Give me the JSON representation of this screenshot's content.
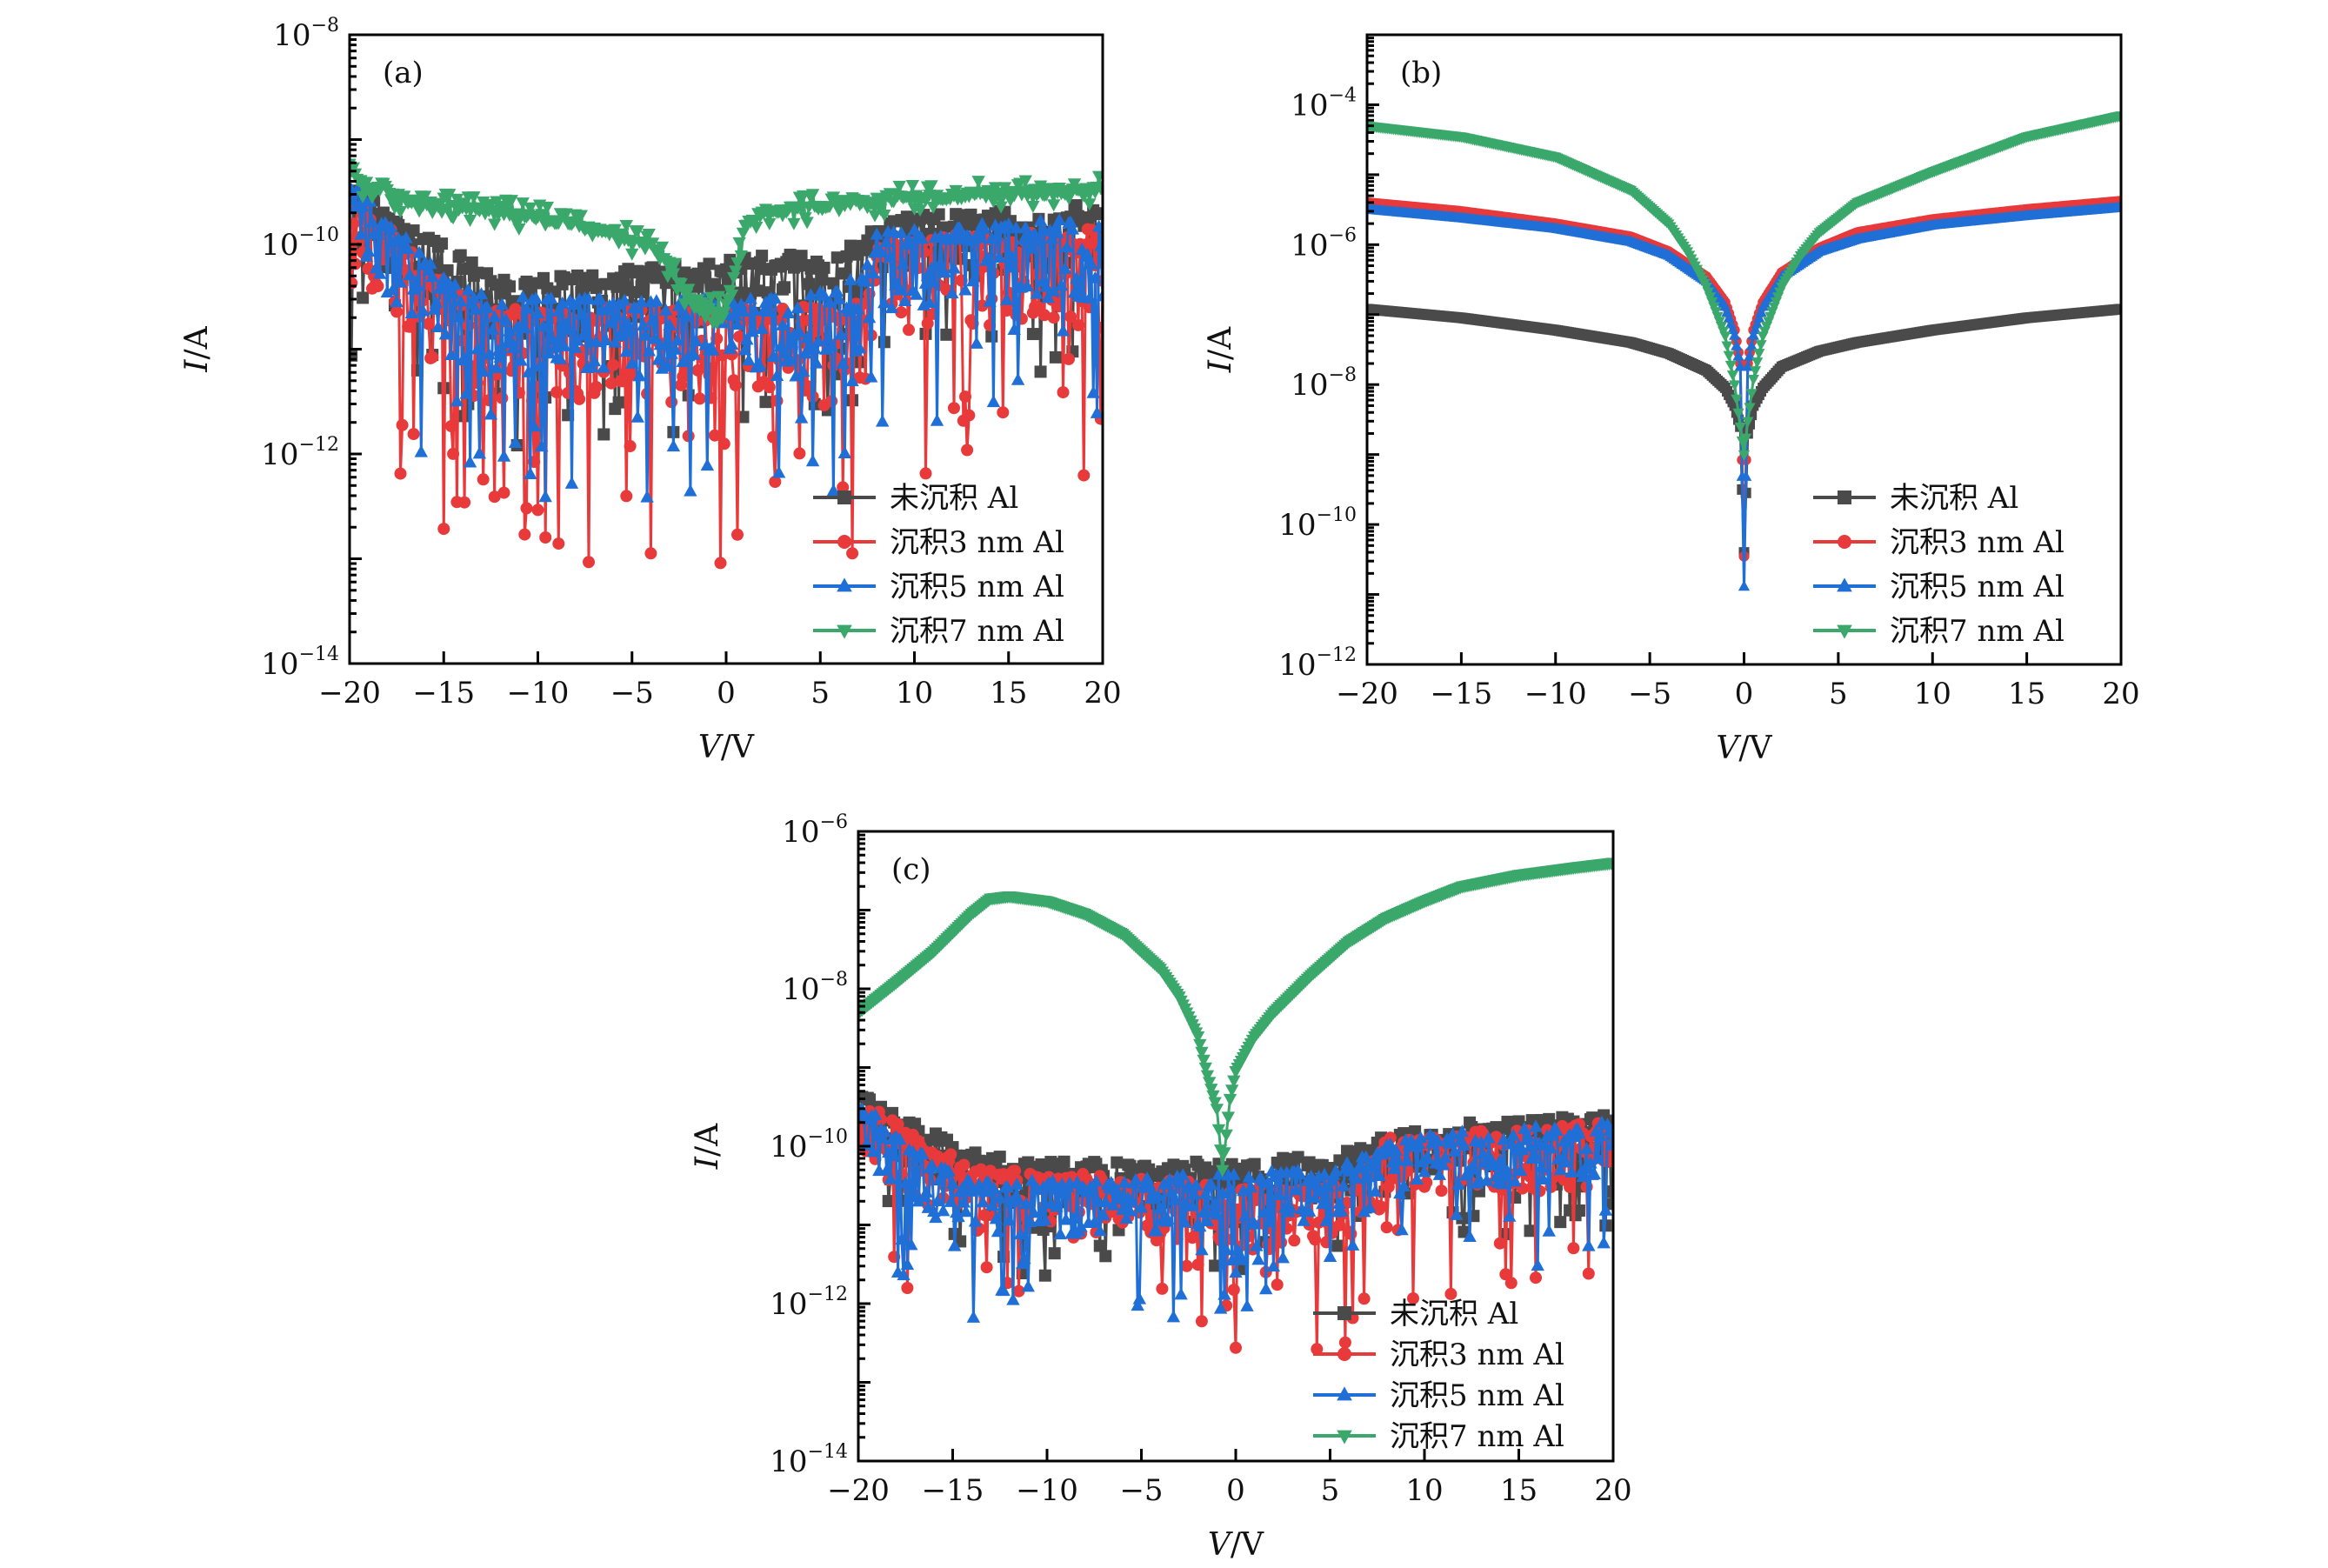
{
  "chart_data": [
    {
      "type": "scatter",
      "panel_label": "(a)",
      "title": "",
      "xlabel": "V/V",
      "ylabel": "I/A",
      "xlim": [
        -20,
        20
      ],
      "ylim": [
        1e-14,
        1e-08
      ],
      "yscale": "log",
      "x_ticks": [
        -20,
        -15,
        -10,
        -5,
        0,
        5,
        10,
        15,
        20
      ],
      "x_tick_labels": [
        "−20",
        "−15",
        "−10",
        "−5",
        "0",
        "5",
        "10",
        "15",
        "20"
      ],
      "y_ticks": [
        1e-14,
        1e-12,
        1e-10,
        1e-08
      ],
      "y_tick_labels": [
        {
          "base": "10",
          "exp": "−14"
        },
        {
          "base": "10",
          "exp": "−12"
        },
        {
          "base": "10",
          "exp": "−10"
        },
        {
          "base": "10",
          "exp": "−8"
        }
      ],
      "legend_position": "bottom-right",
      "series": [
        {
          "name": "未沉积 Al",
          "color": "#4a4a4a",
          "marker": "square",
          "x": [
            -20,
            -18,
            -16,
            -14,
            -12,
            -10,
            -8,
            -6,
            -4,
            -2,
            0,
            2,
            4,
            6,
            7.5,
            8,
            10,
            12,
            14,
            16,
            18,
            20
          ],
          "y": [
            3e-10,
            1.8e-10,
            1.1e-10,
            6e-11,
            4e-11,
            3.8e-11,
            4e-11,
            4.5e-11,
            5e-11,
            5.5e-11,
            6e-11,
            6.2e-11,
            6.5e-11,
            7.5e-11,
            9e-11,
            1.3e-10,
            1.5e-10,
            1.6e-10,
            1.7e-10,
            1.8e-10,
            1.9e-10,
            2e-10
          ],
          "noise_decades": 0.9
        },
        {
          "name": "沉积3 nm Al",
          "color": "#e8393b",
          "marker": "circle",
          "x": [
            -20,
            -18,
            -16,
            -14,
            -12,
            -10,
            -8,
            -6,
            -4,
            -2,
            0,
            2,
            4,
            6,
            7.5,
            8,
            10,
            12,
            14,
            16,
            18,
            20
          ],
          "y": [
            2.5e-10,
            1.2e-10,
            5e-11,
            2.5e-11,
            2e-11,
            2e-11,
            2e-11,
            2e-11,
            2e-11,
            2e-11,
            2e-11,
            2e-11,
            2e-11,
            2e-11,
            3e-11,
            8e-11,
            9e-11,
            1e-10,
            1e-10,
            1.05e-10,
            1.1e-10,
            1.1e-10
          ],
          "noise_decades": 1.4
        },
        {
          "name": "沉积5 nm Al",
          "color": "#1f6fd6",
          "marker": "triangle-up",
          "x": [
            -20,
            -18,
            -16,
            -14,
            -12,
            -10,
            -8,
            -6,
            -4,
            -2,
            0,
            2,
            4,
            6,
            7.5,
            8,
            10,
            12,
            14,
            16,
            18,
            20
          ],
          "y": [
            3e-10,
            1.5e-10,
            6e-11,
            3e-11,
            2.5e-11,
            2.5e-11,
            2.5e-11,
            2.5e-11,
            2.5e-11,
            2.5e-11,
            2.5e-11,
            2.5e-11,
            2.5e-11,
            3e-11,
            5e-11,
            1e-10,
            1.1e-10,
            1.2e-10,
            1.25e-10,
            1.3e-10,
            1.35e-10,
            1.4e-10
          ],
          "noise_decades": 1.1
        },
        {
          "name": "沉积7 nm Al",
          "color": "#3aa86b",
          "marker": "triangle-down",
          "x": [
            -20,
            -19,
            -17,
            -15,
            -12,
            -9,
            -6,
            -4,
            -3,
            -2,
            -1.5,
            -1,
            -0.5,
            0,
            0.5,
            1,
            2,
            4,
            6,
            8,
            10,
            12,
            15,
            17,
            20
          ],
          "y": [
            6e-10,
            3.5e-10,
            2.8e-10,
            2.5e-10,
            2.2e-10,
            1.8e-10,
            1.4e-10,
            1e-10,
            7e-11,
            3.5e-11,
            2.5e-11,
            2.5e-11,
            2.5e-11,
            3e-11,
            6e-11,
            1.6e-10,
            2.2e-10,
            2.4e-10,
            2.6e-10,
            2.8e-10,
            3e-10,
            3.1e-10,
            3.3e-10,
            3.4e-10,
            3.6e-10
          ],
          "noise_decades": 0.1
        }
      ]
    },
    {
      "type": "scatter",
      "panel_label": "(b)",
      "title": "",
      "xlabel": "V/V",
      "ylabel": "I/A",
      "xlim": [
        -20,
        20
      ],
      "ylim": [
        1e-12,
        0.001
      ],
      "yscale": "log",
      "x_ticks": [
        -20,
        -15,
        -10,
        -5,
        0,
        5,
        10,
        15,
        20
      ],
      "x_tick_labels": [
        "−20",
        "−15",
        "−10",
        "−5",
        "0",
        "5",
        "10",
        "15",
        "20"
      ],
      "y_ticks": [
        1e-12,
        1e-10,
        1e-08,
        1e-06,
        0.0001
      ],
      "y_tick_labels": [
        {
          "base": "10",
          "exp": "−12"
        },
        {
          "base": "10",
          "exp": "−10"
        },
        {
          "base": "10",
          "exp": "−8"
        },
        {
          "base": "10",
          "exp": "−6"
        },
        {
          "base": "10",
          "exp": "−4"
        }
      ],
      "legend_position": "bottom-right",
      "series": [
        {
          "name": "未沉积 Al",
          "color": "#4a4a4a",
          "marker": "square",
          "x": [
            -20,
            -15,
            -10,
            -6,
            -4,
            -2,
            -1,
            -0.5,
            -0.2,
            0,
            0.2,
            0.5,
            1,
            2,
            4,
            6,
            10,
            15,
            20
          ],
          "y": [
            1.2e-07,
            9e-08,
            6e-08,
            4e-08,
            2.8e-08,
            1.6e-08,
            9e-09,
            5e-09,
            2.5e-09,
            4e-11,
            2e-09,
            5e-09,
            9e-09,
            1.8e-08,
            3e-08,
            4e-08,
            6e-08,
            9e-08,
            1.2e-07
          ],
          "noise_decades": 0
        },
        {
          "name": "沉积3 nm Al",
          "color": "#e8393b",
          "marker": "circle",
          "x": [
            -20,
            -15,
            -10,
            -6,
            -4,
            -2,
            -1,
            -0.5,
            -0.2,
            0,
            0.2,
            0.5,
            1,
            2,
            4,
            6,
            10,
            15,
            20
          ],
          "y": [
            4e-06,
            3e-06,
            2e-06,
            1.3e-06,
            8e-07,
            3.5e-07,
            1.5e-07,
            6e-08,
            2e-08,
            3.5e-11,
            2e-08,
            6e-08,
            1.5e-07,
            4e-07,
            9e-07,
            1.5e-06,
            2.3e-06,
            3.2e-06,
            4.2e-06
          ],
          "noise_decades": 0
        },
        {
          "name": "沉积5 nm Al",
          "color": "#1f6fd6",
          "marker": "triangle-up",
          "x": [
            -20,
            -15,
            -10,
            -6,
            -4,
            -2,
            -1,
            -0.5,
            -0.2,
            0,
            0.2,
            0.5,
            1,
            2,
            4,
            6,
            10,
            15,
            20
          ],
          "y": [
            3.2e-06,
            2.4e-06,
            1.7e-06,
            1.1e-06,
            7e-07,
            3e-07,
            1.3e-07,
            5e-08,
            1.8e-08,
            1.3e-11,
            1.8e-08,
            5e-08,
            1.3e-07,
            3.5e-07,
            8e-07,
            1.2e-06,
            1.9e-06,
            2.6e-06,
            3.4e-06
          ],
          "noise_decades": 0
        },
        {
          "name": "沉积7 nm Al",
          "color": "#3aa86b",
          "marker": "triangle-down",
          "x": [
            -20,
            -15,
            -10,
            -6,
            -4,
            -3,
            -2,
            -1,
            -0.5,
            -0.2,
            0,
            0.2,
            0.5,
            1,
            2,
            3,
            4,
            6,
            10,
            15,
            20
          ],
          "y": [
            5e-05,
            3.5e-05,
            1.8e-05,
            6e-06,
            2e-06,
            8e-07,
            2.5e-07,
            5e-08,
            1e-08,
            2.5e-09,
            1e-09,
            3e-09,
            1.2e-08,
            5e-08,
            2.5e-07,
            7e-07,
            1.5e-06,
            4e-06,
            1.1e-05,
            3.5e-05,
            7e-05
          ],
          "noise_decades": 0
        }
      ]
    },
    {
      "type": "scatter",
      "panel_label": "(c)",
      "title": "",
      "xlabel": "V/V",
      "ylabel": "I/A",
      "xlim": [
        -20,
        20
      ],
      "ylim": [
        1e-14,
        1e-06
      ],
      "yscale": "log",
      "x_ticks": [
        -20,
        -15,
        -10,
        -5,
        0,
        5,
        10,
        15,
        20
      ],
      "x_tick_labels": [
        "−20",
        "−15",
        "−10",
        "−5",
        "0",
        "5",
        "10",
        "15",
        "20"
      ],
      "y_ticks": [
        1e-14,
        1e-12,
        1e-10,
        1e-08,
        1e-06
      ],
      "y_tick_labels": [
        {
          "base": "10",
          "exp": "−14"
        },
        {
          "base": "10",
          "exp": "−12"
        },
        {
          "base": "10",
          "exp": "−10"
        },
        {
          "base": "10",
          "exp": "−8"
        },
        {
          "base": "10",
          "exp": "−6"
        }
      ],
      "legend_position": "bottom-right",
      "series": [
        {
          "name": "未沉积 Al",
          "color": "#4a4a4a",
          "marker": "square",
          "x": [
            -20,
            -18,
            -16,
            -14,
            -12,
            -10,
            -8,
            -6,
            -4,
            -2,
            0,
            2,
            4,
            6,
            7,
            8,
            10,
            12,
            14,
            16,
            18,
            20
          ],
          "y": [
            4e-10,
            2e-10,
            1.2e-10,
            7e-11,
            5.5e-11,
            5e-11,
            5e-11,
            5e-11,
            5e-11,
            5e-11,
            5e-11,
            5.5e-11,
            6e-11,
            7e-11,
            8e-11,
            1.2e-10,
            1.4e-10,
            1.6e-10,
            1.7e-10,
            1.8e-10,
            1.9e-10,
            2e-10
          ],
          "noise_decades": 0.8
        },
        {
          "name": "沉积3 nm Al",
          "color": "#e8393b",
          "marker": "circle",
          "x": [
            -20,
            -18,
            -16,
            -14,
            -12,
            -10,
            -8,
            -6,
            -4,
            -2,
            0,
            2,
            4,
            6,
            7,
            8,
            10,
            12,
            14,
            16,
            18,
            20
          ],
          "y": [
            3.5e-10,
            1.6e-10,
            8e-11,
            4.5e-11,
            4e-11,
            3.5e-11,
            3.5e-11,
            3.5e-11,
            3e-11,
            3e-11,
            2.5e-11,
            2.5e-11,
            2.5e-11,
            3e-11,
            5e-11,
            1e-10,
            1.1e-10,
            1.2e-10,
            1.3e-10,
            1.4e-10,
            1.5e-10,
            1.6e-10
          ],
          "noise_decades": 1.2
        },
        {
          "name": "沉积5 nm Al",
          "color": "#1f6fd6",
          "marker": "triangle-up",
          "x": [
            -20,
            -18,
            -16,
            -14,
            -12,
            -10,
            -8,
            -6,
            -4,
            -2,
            0,
            2,
            4,
            6,
            7,
            8,
            10,
            12,
            14,
            16,
            18,
            20
          ],
          "y": [
            3e-10,
            1.2e-10,
            5e-11,
            3e-11,
            3e-11,
            3e-11,
            3e-11,
            3e-11,
            3.2e-11,
            3.5e-11,
            3.5e-11,
            3.8e-11,
            4e-11,
            5e-11,
            6e-11,
            9e-11,
            1.1e-10,
            1.2e-10,
            1.3e-10,
            1.4e-10,
            1.5e-10,
            1.6e-10
          ],
          "noise_decades": 1.0
        },
        {
          "name": "沉积7 nm Al",
          "color": "#3aa86b",
          "marker": "triangle-down",
          "x": [
            -20,
            -18,
            -16,
            -14,
            -13,
            -12,
            -10,
            -8,
            -6,
            -4,
            -3,
            -2,
            -1.5,
            -1,
            -0.7,
            -0.3,
            0,
            0.5,
            1,
            2,
            4,
            6,
            8,
            10,
            12,
            15,
            18,
            20
          ],
          "y": [
            5e-09,
            1.2e-08,
            3e-08,
            9e-08,
            1.4e-07,
            1.5e-07,
            1.3e-07,
            9e-08,
            5e-08,
            1.8e-08,
            8e-09,
            2.5e-09,
            8e-10,
            3e-10,
            5e-11,
            4e-10,
            9e-10,
            1.5e-09,
            2.5e-09,
            5e-09,
            1.5e-08,
            4e-08,
            8e-08,
            1.3e-07,
            2e-07,
            2.8e-07,
            3.5e-07,
            4e-07
          ],
          "noise_decades": 0
        }
      ]
    }
  ]
}
